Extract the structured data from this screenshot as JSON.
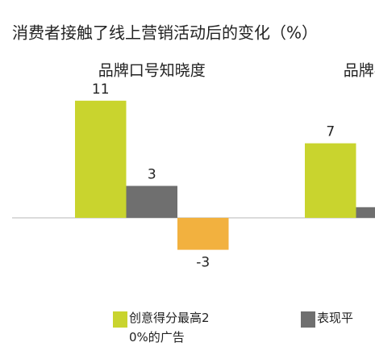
{
  "chart_data": {
    "type": "bar",
    "title": "消费者接触了线上营销活动后的变化（%）",
    "categories": [
      "品牌口号知晓度",
      "品牌喜爱度"
    ],
    "series": [
      {
        "name": "创意得分最高20%的广告",
        "color": "#c9d42e",
        "values": [
          11,
          7
        ]
      },
      {
        "name": "表现平",
        "color": "#6f6f6f",
        "values": [
          3,
          1
        ]
      },
      {
        "color": "#f2b13f",
        "values": [
          -3,
          null
        ]
      }
    ]
  }
}
